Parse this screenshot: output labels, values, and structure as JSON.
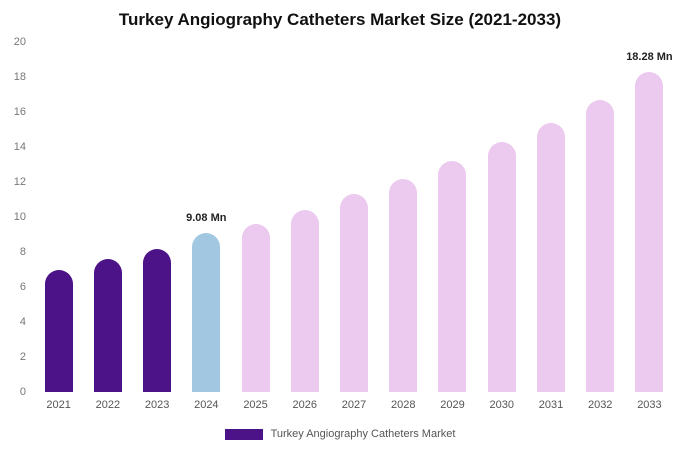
{
  "title": "Turkey Angiography Catheters Market Size (2021-2033)",
  "legend": {
    "label": "Turkey Angiography Catheters Market",
    "color": "#4c1287"
  },
  "chart_data": {
    "type": "bar",
    "title": "Turkey Angiography Catheters Market Size (2021-2033)",
    "xlabel": "",
    "ylabel": "",
    "categories": [
      "2021",
      "2022",
      "2023",
      "2024",
      "2025",
      "2026",
      "2027",
      "2028",
      "2029",
      "2030",
      "2031",
      "2032",
      "2033"
    ],
    "values": [
      7.0,
      7.6,
      8.2,
      9.08,
      9.6,
      10.4,
      11.3,
      12.2,
      13.2,
      14.3,
      15.4,
      16.7,
      18.28
    ],
    "unit": "Mn",
    "ylim": [
      0,
      20
    ],
    "yticks": [
      0,
      2,
      4,
      6,
      8,
      10,
      12,
      14,
      16,
      18,
      20
    ],
    "grid": false,
    "legend_position": "bottom",
    "colors": {
      "past": "#4c1287",
      "current": "#a2c8e1",
      "forecast": "#ecc9ee"
    },
    "color_map": [
      "past",
      "past",
      "past",
      "current",
      "forecast",
      "forecast",
      "forecast",
      "forecast",
      "forecast",
      "forecast",
      "forecast",
      "forecast",
      "forecast"
    ],
    "annotations": [
      {
        "index": 3,
        "text": "9.08 Mn"
      },
      {
        "index": 12,
        "text": "18.28 Mn"
      }
    ]
  }
}
